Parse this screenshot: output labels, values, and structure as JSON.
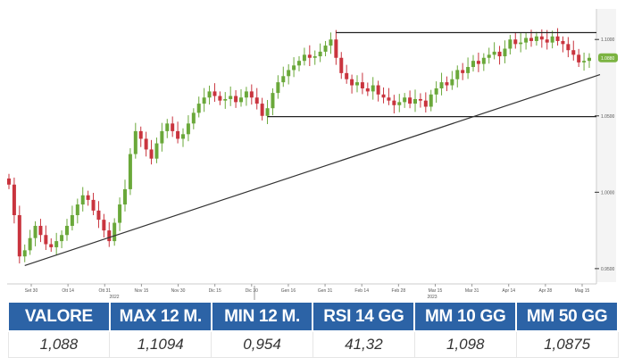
{
  "chart_data": {
    "type": "candlestick",
    "y_ticks": [
      "1.1000",
      "1.0500",
      "1.0000",
      "0.9500"
    ],
    "y_tick_values": [
      1.1,
      1.05,
      1.0,
      0.95
    ],
    "ylim": [
      0.94,
      1.12
    ],
    "x_ticks": [
      "Set 30",
      "Ott 14",
      "Ott 31",
      "Nov 15",
      "Nov 30",
      "Dic 15",
      "Dic 30",
      "Gen 16",
      "Gen 31",
      "Feb 14",
      "Feb 28",
      "Mar 15",
      "Mar 31",
      "Apr 14",
      "Apr 28",
      "Mag 15"
    ],
    "years": [
      "2022",
      "2023"
    ],
    "last_price_label": "1.0880",
    "colors": {
      "up": "#6aa83a",
      "down": "#c9343e",
      "badge": "#7bb341",
      "line": "#333333"
    },
    "closes": [
      1.005,
      0.985,
      0.958,
      0.962,
      0.97,
      0.978,
      0.972,
      0.966,
      0.964,
      0.968,
      0.972,
      0.978,
      0.985,
      0.992,
      0.998,
      0.995,
      0.988,
      0.982,
      0.975,
      0.968,
      0.98,
      0.992,
      1.002,
      1.025,
      1.04,
      1.035,
      1.028,
      1.022,
      1.032,
      1.04,
      1.045,
      1.04,
      1.035,
      1.038,
      1.045,
      1.052,
      1.058,
      1.062,
      1.066,
      1.063,
      1.06,
      1.061,
      1.063,
      1.059,
      1.062,
      1.066,
      1.062,
      1.058,
      1.05,
      1.055,
      1.065,
      1.072,
      1.076,
      1.08,
      1.083,
      1.086,
      1.09,
      1.088,
      1.089,
      1.092,
      1.096,
      1.1,
      1.088,
      1.078,
      1.074,
      1.07,
      1.072,
      1.068,
      1.066,
      1.07,
      1.064,
      1.062,
      1.06,
      1.057,
      1.059,
      1.062,
      1.058,
      1.061,
      1.06,
      1.056,
      1.064,
      1.068,
      1.072,
      1.07,
      1.074,
      1.08,
      1.078,
      1.082,
      1.086,
      1.084,
      1.088,
      1.09,
      1.092,
      1.089,
      1.094,
      1.1,
      1.097,
      1.098,
      1.101,
      1.099,
      1.102,
      1.1,
      1.098,
      1.102,
      1.099,
      1.097,
      1.093,
      1.09,
      1.085,
      1.086,
      1.088
    ],
    "resistance": {
      "value": 1.1045,
      "from_index": 62
    },
    "support": {
      "value": 1.0495,
      "from_index": 49
    },
    "trendline": {
      "from_index": 3,
      "from_value": 0.952,
      "to_value": 1.077
    }
  },
  "table": {
    "headers": [
      "VALORE",
      "MAX 12 M.",
      "MIN 12 M.",
      "RSI 14 GG",
      "MM 10 GG",
      "MM 50 GG"
    ],
    "values": [
      "1,088",
      "1,1094",
      "0,954",
      "41,32",
      "1,098",
      "1,0875"
    ]
  }
}
